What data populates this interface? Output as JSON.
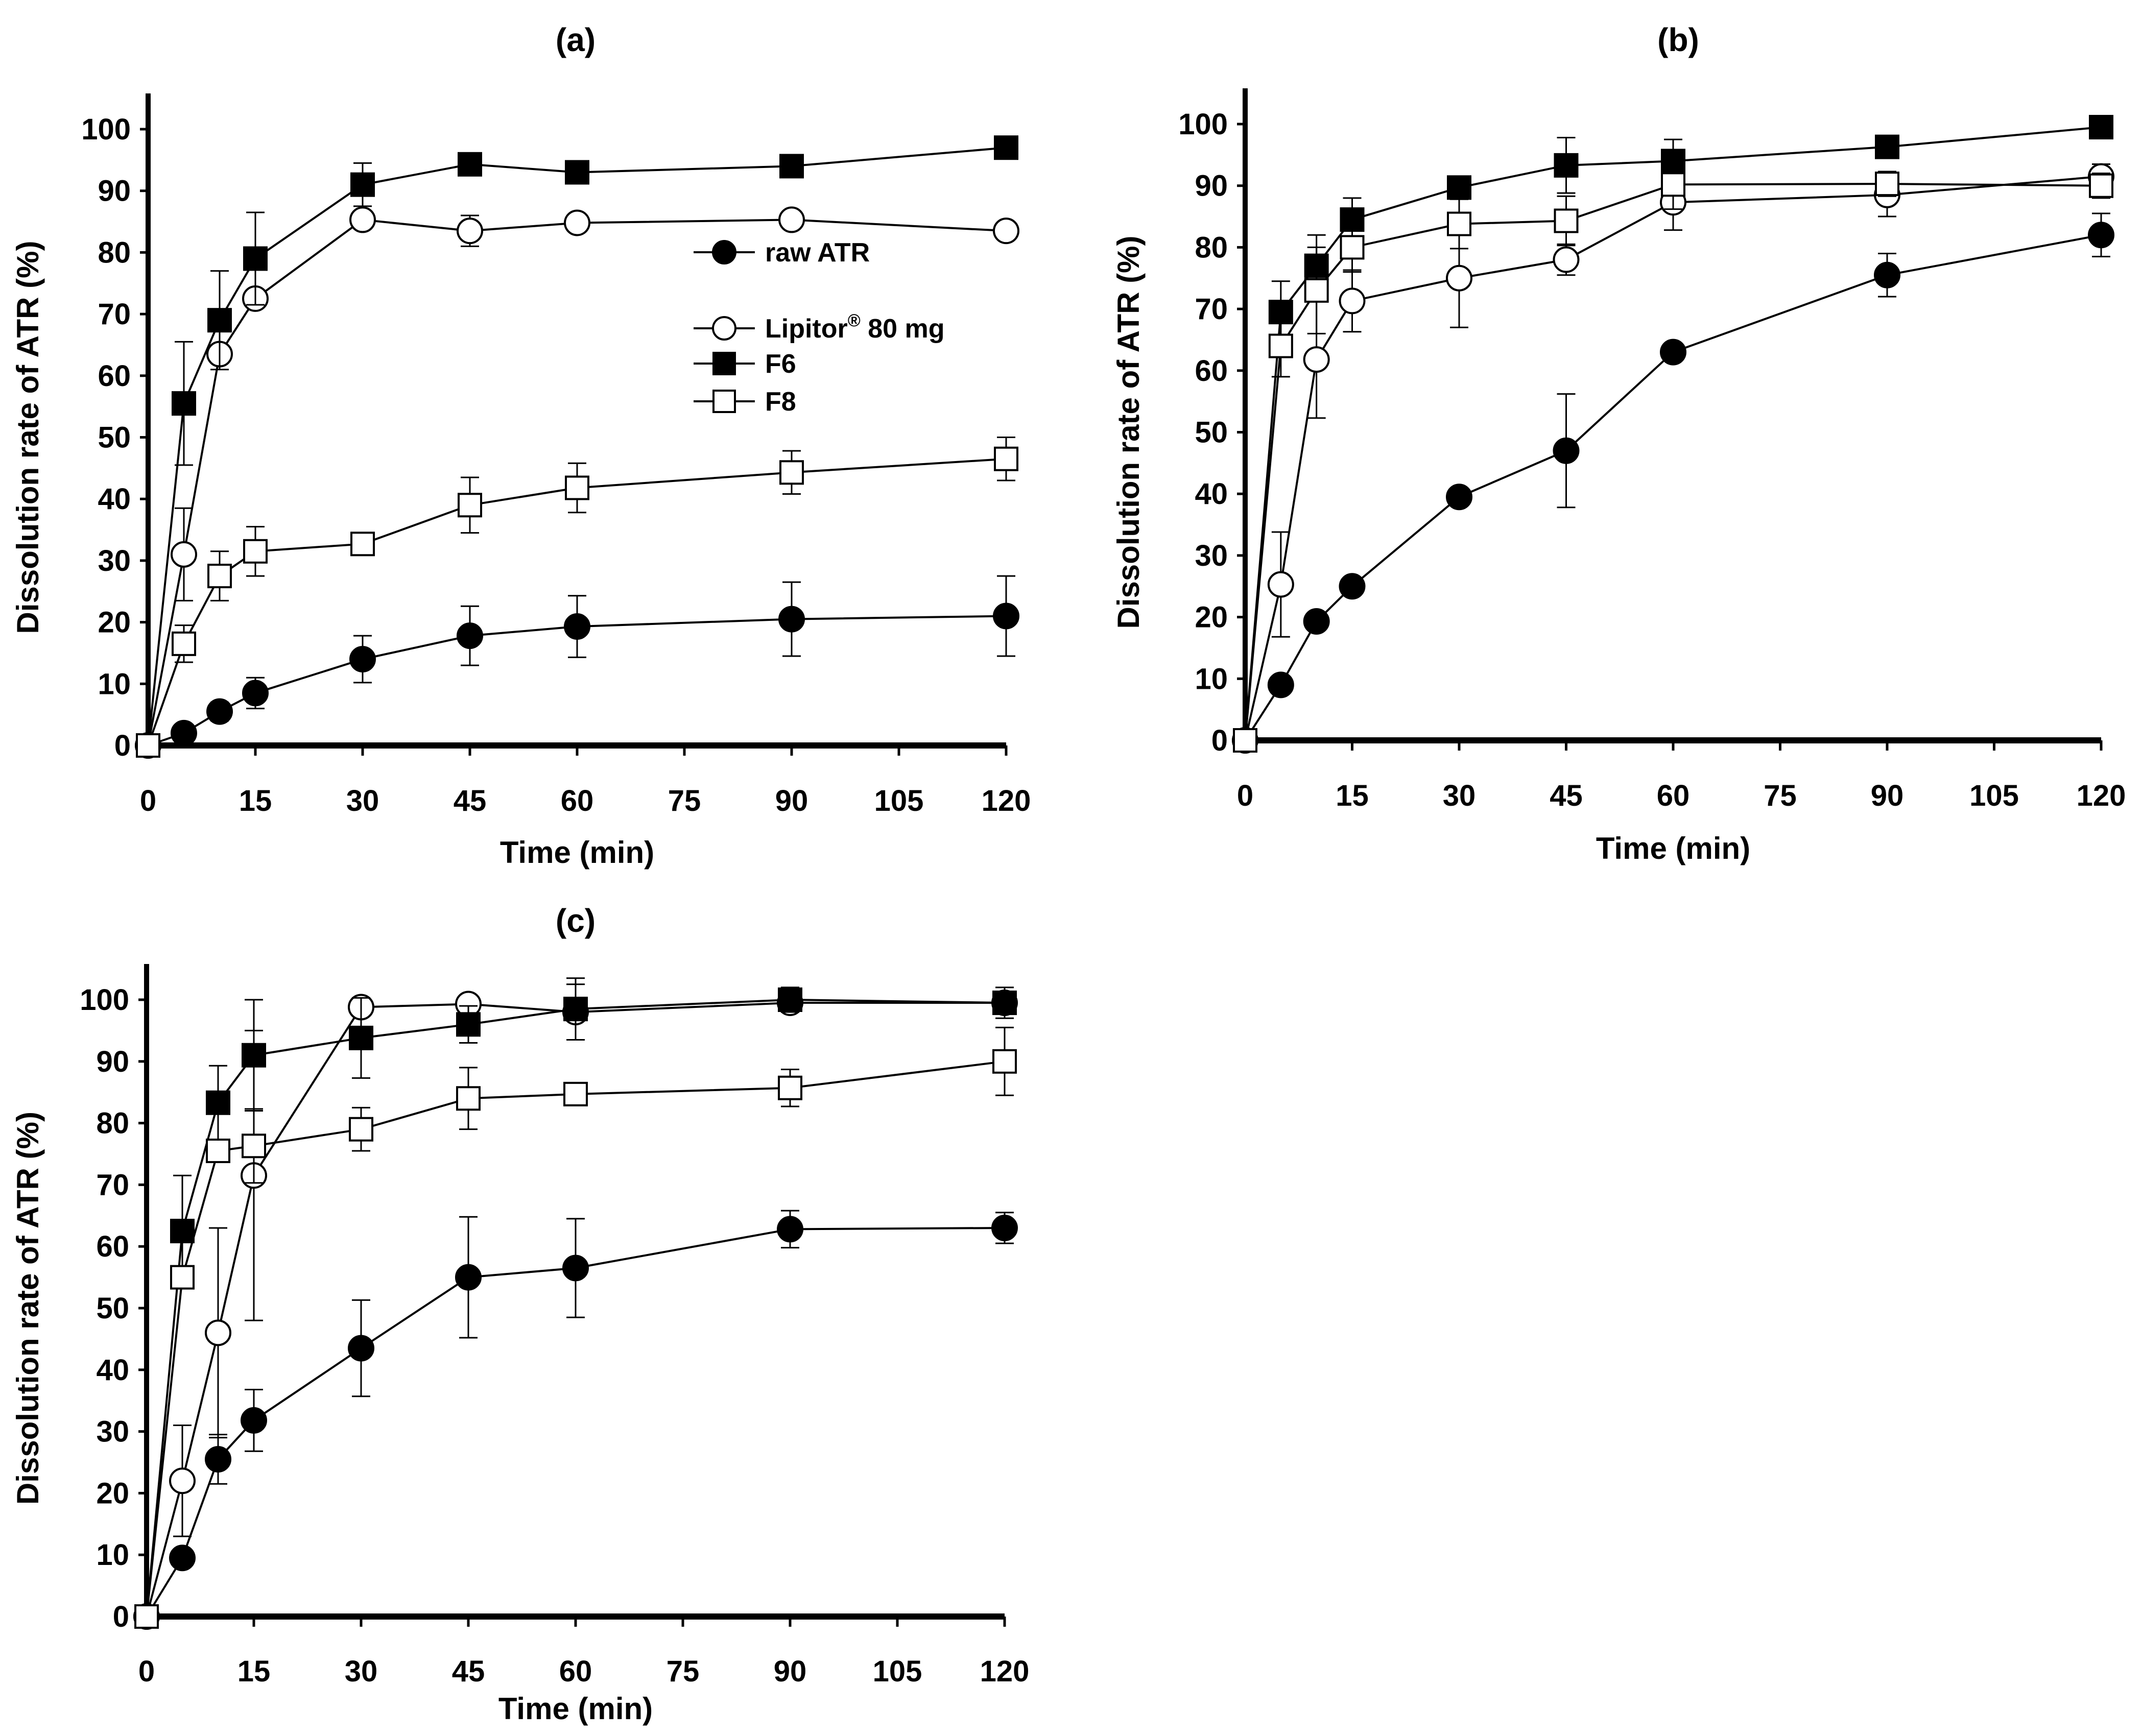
{
  "figure": {
    "legend": {
      "entries": [
        {
          "label": "raw ATR",
          "marker": "filled-circle"
        },
        {
          "label_main": "Lipitor",
          "label_sup": "®",
          "label_rest": " 80 mg",
          "marker": "open-circle"
        },
        {
          "label": "F6",
          "marker": "filled-square"
        },
        {
          "label": "F8",
          "marker": "open-square"
        }
      ],
      "placement": "panel (a), center-right"
    }
  },
  "chart_data": [
    {
      "panel": "(a)",
      "title": "(a)",
      "type": "line",
      "xlabel": "Time (min)",
      "ylabel": "Dissolution rate of ATR (%)",
      "xlim": [
        0,
        120
      ],
      "ylim": [
        0,
        100
      ],
      "xticks": [
        "0",
        "15",
        "30",
        "45",
        "60",
        "75",
        "90",
        "105",
        "120"
      ],
      "yticks": [
        "0",
        "10",
        "20",
        "30",
        "40",
        "50",
        "60",
        "70",
        "80",
        "90",
        "100"
      ],
      "grid": false,
      "x": [
        0,
        5,
        10,
        15,
        30,
        45,
        60,
        90,
        120
      ],
      "series": [
        {
          "name": "raw ATR",
          "marker": "filled-circle",
          "values": [
            0,
            2,
            5.5,
            8.5,
            14,
            17.8,
            19.3,
            20.5,
            21
          ],
          "err": [
            0,
            0.5,
            1.5,
            2.5,
            3.8,
            4.8,
            5,
            6,
            6.5
          ]
        },
        {
          "name": "Lipitor® 80 mg",
          "marker": "open-circle",
          "values": [
            0,
            31,
            63.5,
            72.5,
            85.3,
            83.5,
            84.8,
            85.3,
            83.5
          ],
          "err": [
            0,
            7.5,
            0,
            0,
            0,
            2.5,
            0,
            0,
            0
          ]
        },
        {
          "name": "F6",
          "marker": "filled-square",
          "values": [
            0,
            55.5,
            69,
            79,
            91,
            94.3,
            93,
            94,
            97
          ],
          "err": [
            0,
            10,
            8,
            7.5,
            3.5,
            0,
            0,
            0,
            0
          ]
        },
        {
          "name": "F8",
          "marker": "open-square",
          "values": [
            0,
            16.5,
            27.5,
            31.5,
            32.7,
            39,
            41.8,
            44.3,
            46.5
          ],
          "err": [
            0,
            3,
            4,
            4,
            0,
            4.5,
            4,
            3.5,
            3.5
          ]
        }
      ]
    },
    {
      "panel": "(b)",
      "title": "(b)",
      "type": "line",
      "xlabel": "Time (min)",
      "ylabel": "Dissolution rate of ATR (%)",
      "xlim": [
        0,
        120
      ],
      "ylim": [
        0,
        100
      ],
      "xticks": [
        "0",
        "15",
        "30",
        "45",
        "60",
        "75",
        "90",
        "105",
        "120"
      ],
      "yticks": [
        "0",
        "10",
        "20",
        "30",
        "40",
        "50",
        "60",
        "70",
        "80",
        "90",
        "100"
      ],
      "grid": false,
      "x": [
        0,
        5,
        10,
        15,
        30,
        45,
        60,
        90,
        120
      ],
      "series": [
        {
          "name": "raw ATR",
          "marker": "filled-circle",
          "values": [
            0,
            9,
            19.3,
            25,
            39.5,
            47,
            63,
            75.5,
            82
          ],
          "err": [
            0,
            0,
            0,
            0,
            0,
            9.2,
            0,
            3.5,
            3.5
          ]
        },
        {
          "name": "Lipitor® 80 mg",
          "marker": "open-circle",
          "values": [
            0,
            25.3,
            61.8,
            71.3,
            75,
            78,
            87.3,
            88.5,
            91.5
          ],
          "err": [
            0,
            8.5,
            9.5,
            5,
            8,
            2.5,
            4.5,
            3.5,
            2
          ]
        },
        {
          "name": "F6",
          "marker": "filled-square",
          "values": [
            0,
            69.5,
            77,
            84.5,
            89.7,
            93.3,
            94,
            96.3,
            99.5
          ],
          "err": [
            0,
            5,
            5,
            3.5,
            0,
            4.5,
            3.5,
            0,
            0
          ]
        },
        {
          "name": "F8",
          "marker": "open-square",
          "values": [
            0,
            64,
            73,
            80,
            83.8,
            84.3,
            90.2,
            90.3,
            90
          ],
          "err": [
            0,
            5,
            7,
            4,
            4,
            4,
            4,
            2,
            2
          ]
        }
      ]
    },
    {
      "panel": "(c)",
      "title": "(c)",
      "type": "line",
      "xlabel": "Time (min)",
      "ylabel": "Dissolution rate of ATR (%)",
      "xlim": [
        0,
        120
      ],
      "ylim": [
        0,
        100
      ],
      "xticks": [
        "0",
        "15",
        "30",
        "45",
        "60",
        "75",
        "90",
        "105",
        "120"
      ],
      "yticks": [
        "0",
        "10",
        "20",
        "30",
        "40",
        "50",
        "60",
        "70",
        "80",
        "90",
        "100"
      ],
      "grid": false,
      "x": [
        0,
        5,
        10,
        15,
        30,
        45,
        60,
        90,
        120
      ],
      "series": [
        {
          "name": "raw ATR",
          "marker": "filled-circle",
          "values": [
            0,
            9.5,
            25.5,
            31.8,
            43.5,
            55,
            56.5,
            62.8,
            63
          ],
          "err": [
            0,
            0,
            4,
            5,
            7.8,
            9.8,
            8,
            3,
            2.5
          ]
        },
        {
          "name": "Lipitor® 80 mg",
          "marker": "open-circle",
          "values": [
            0,
            22,
            46,
            71.5,
            98.8,
            99.3,
            98,
            99.5,
            99.5
          ],
          "err": [
            0,
            9,
            17,
            23.5,
            0,
            0,
            4.5,
            0,
            0
          ]
        },
        {
          "name": "F6",
          "marker": "filled-square",
          "values": [
            0,
            62.5,
            83.3,
            91,
            93.8,
            96,
            98.5,
            100,
            99.5
          ],
          "err": [
            0,
            9,
            6,
            9,
            6.5,
            3,
            5,
            2,
            2.5
          ]
        },
        {
          "name": "F8",
          "marker": "open-square",
          "values": [
            0,
            55,
            75.5,
            76.3,
            79,
            84,
            84.7,
            85.7,
            90
          ],
          "err": [
            0,
            0,
            0,
            6,
            3.5,
            5,
            0,
            3,
            5.5
          ]
        }
      ]
    }
  ]
}
